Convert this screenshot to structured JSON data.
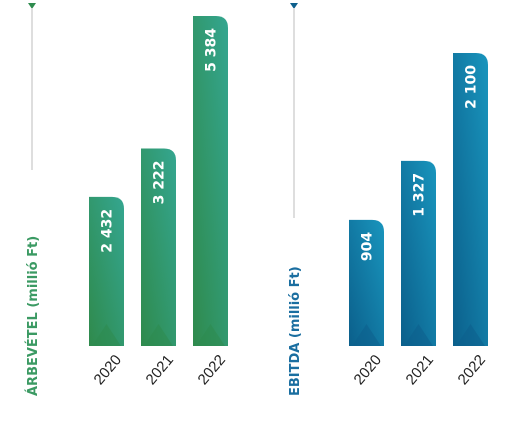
{
  "chart_data": [
    {
      "type": "bar",
      "ylabel": "ÁRBEVÉTEL (millió Ft)",
      "categories": [
        "2020",
        "2021",
        "2022"
      ],
      "values": [
        2432,
        3222,
        5384
      ],
      "value_labels": [
        "2 432",
        "3 222",
        "5 384"
      ],
      "colors": {
        "dark": "#2e8b4e",
        "light": "#35a896",
        "label": "#3b9a63"
      }
    },
    {
      "type": "bar",
      "ylabel": "EBITDA (millió Ft)",
      "categories": [
        "2020",
        "2021",
        "2022"
      ],
      "values": [
        904,
        1327,
        2100
      ],
      "value_labels": [
        "904",
        "1 327",
        "2 100"
      ],
      "colors": {
        "dark": "#0d5f8c",
        "light": "#1a8fb8",
        "label": "#1a6ea0"
      }
    }
  ]
}
